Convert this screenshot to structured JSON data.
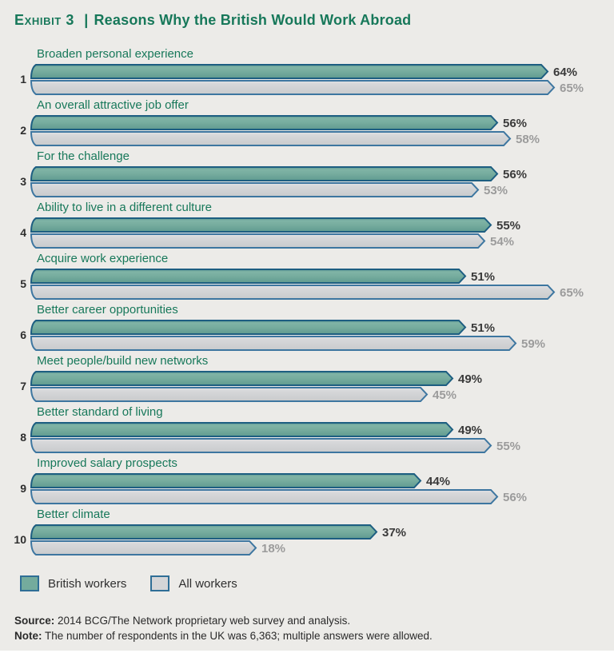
{
  "header": {
    "exhibit_label": "Exhibit 3",
    "separator": "|",
    "title": "Reasons Why the British Would Work Abroad"
  },
  "chart_data": {
    "type": "bar",
    "orientation": "horizontal",
    "title": "Exhibit 3 | Reasons Why the British Would Work Abroad",
    "categories": [
      "Broaden personal experience",
      "An overall attractive job offer",
      "For the challenge",
      "Ability to live in a different culture",
      "Acquire work experience",
      "Better career opportunities",
      "Meet people/build new networks",
      "Better standard of living",
      "Improved salary prospects",
      "Better climate"
    ],
    "ranks": [
      1,
      2,
      3,
      4,
      5,
      6,
      7,
      8,
      9,
      10
    ],
    "series": [
      {
        "name": "British workers",
        "color": "#74ab9d",
        "stroke": "#1d5e81",
        "values": [
          64,
          56,
          56,
          55,
          51,
          51,
          49,
          49,
          44,
          37
        ]
      },
      {
        "name": "All workers",
        "color": "#d4d5d7",
        "stroke": "#3d76a0",
        "values": [
          65,
          58,
          53,
          54,
          65,
          59,
          45,
          55,
          56,
          18
        ]
      }
    ],
    "value_suffix": "%",
    "value_labels": true,
    "grid": false,
    "axis_ticks": "none",
    "legend_position": "bottom",
    "value_label_colors": {
      "british": "#3a3a3a",
      "all": "#9b9b9b"
    }
  },
  "legend": {
    "items": [
      {
        "label": "British workers",
        "color": "#74ab9d"
      },
      {
        "label": "All workers",
        "color": "#d4d5d7"
      }
    ]
  },
  "footer": {
    "source_label": "Source:",
    "source_text": " 2014 BCG/The Network proprietary web survey and analysis.",
    "note_label": "Note:",
    "note_text": "  The number of respondents in the UK was 6,363; multiple answers were allowed."
  },
  "colors": {
    "accent_green": "#17785a",
    "background": "#ecebe8",
    "bar_british_fill": "#74ab9d",
    "bar_british_stroke": "#1d5e81",
    "bar_all_fill": "#d4d5d7",
    "bar_all_stroke": "#3d76a0"
  }
}
